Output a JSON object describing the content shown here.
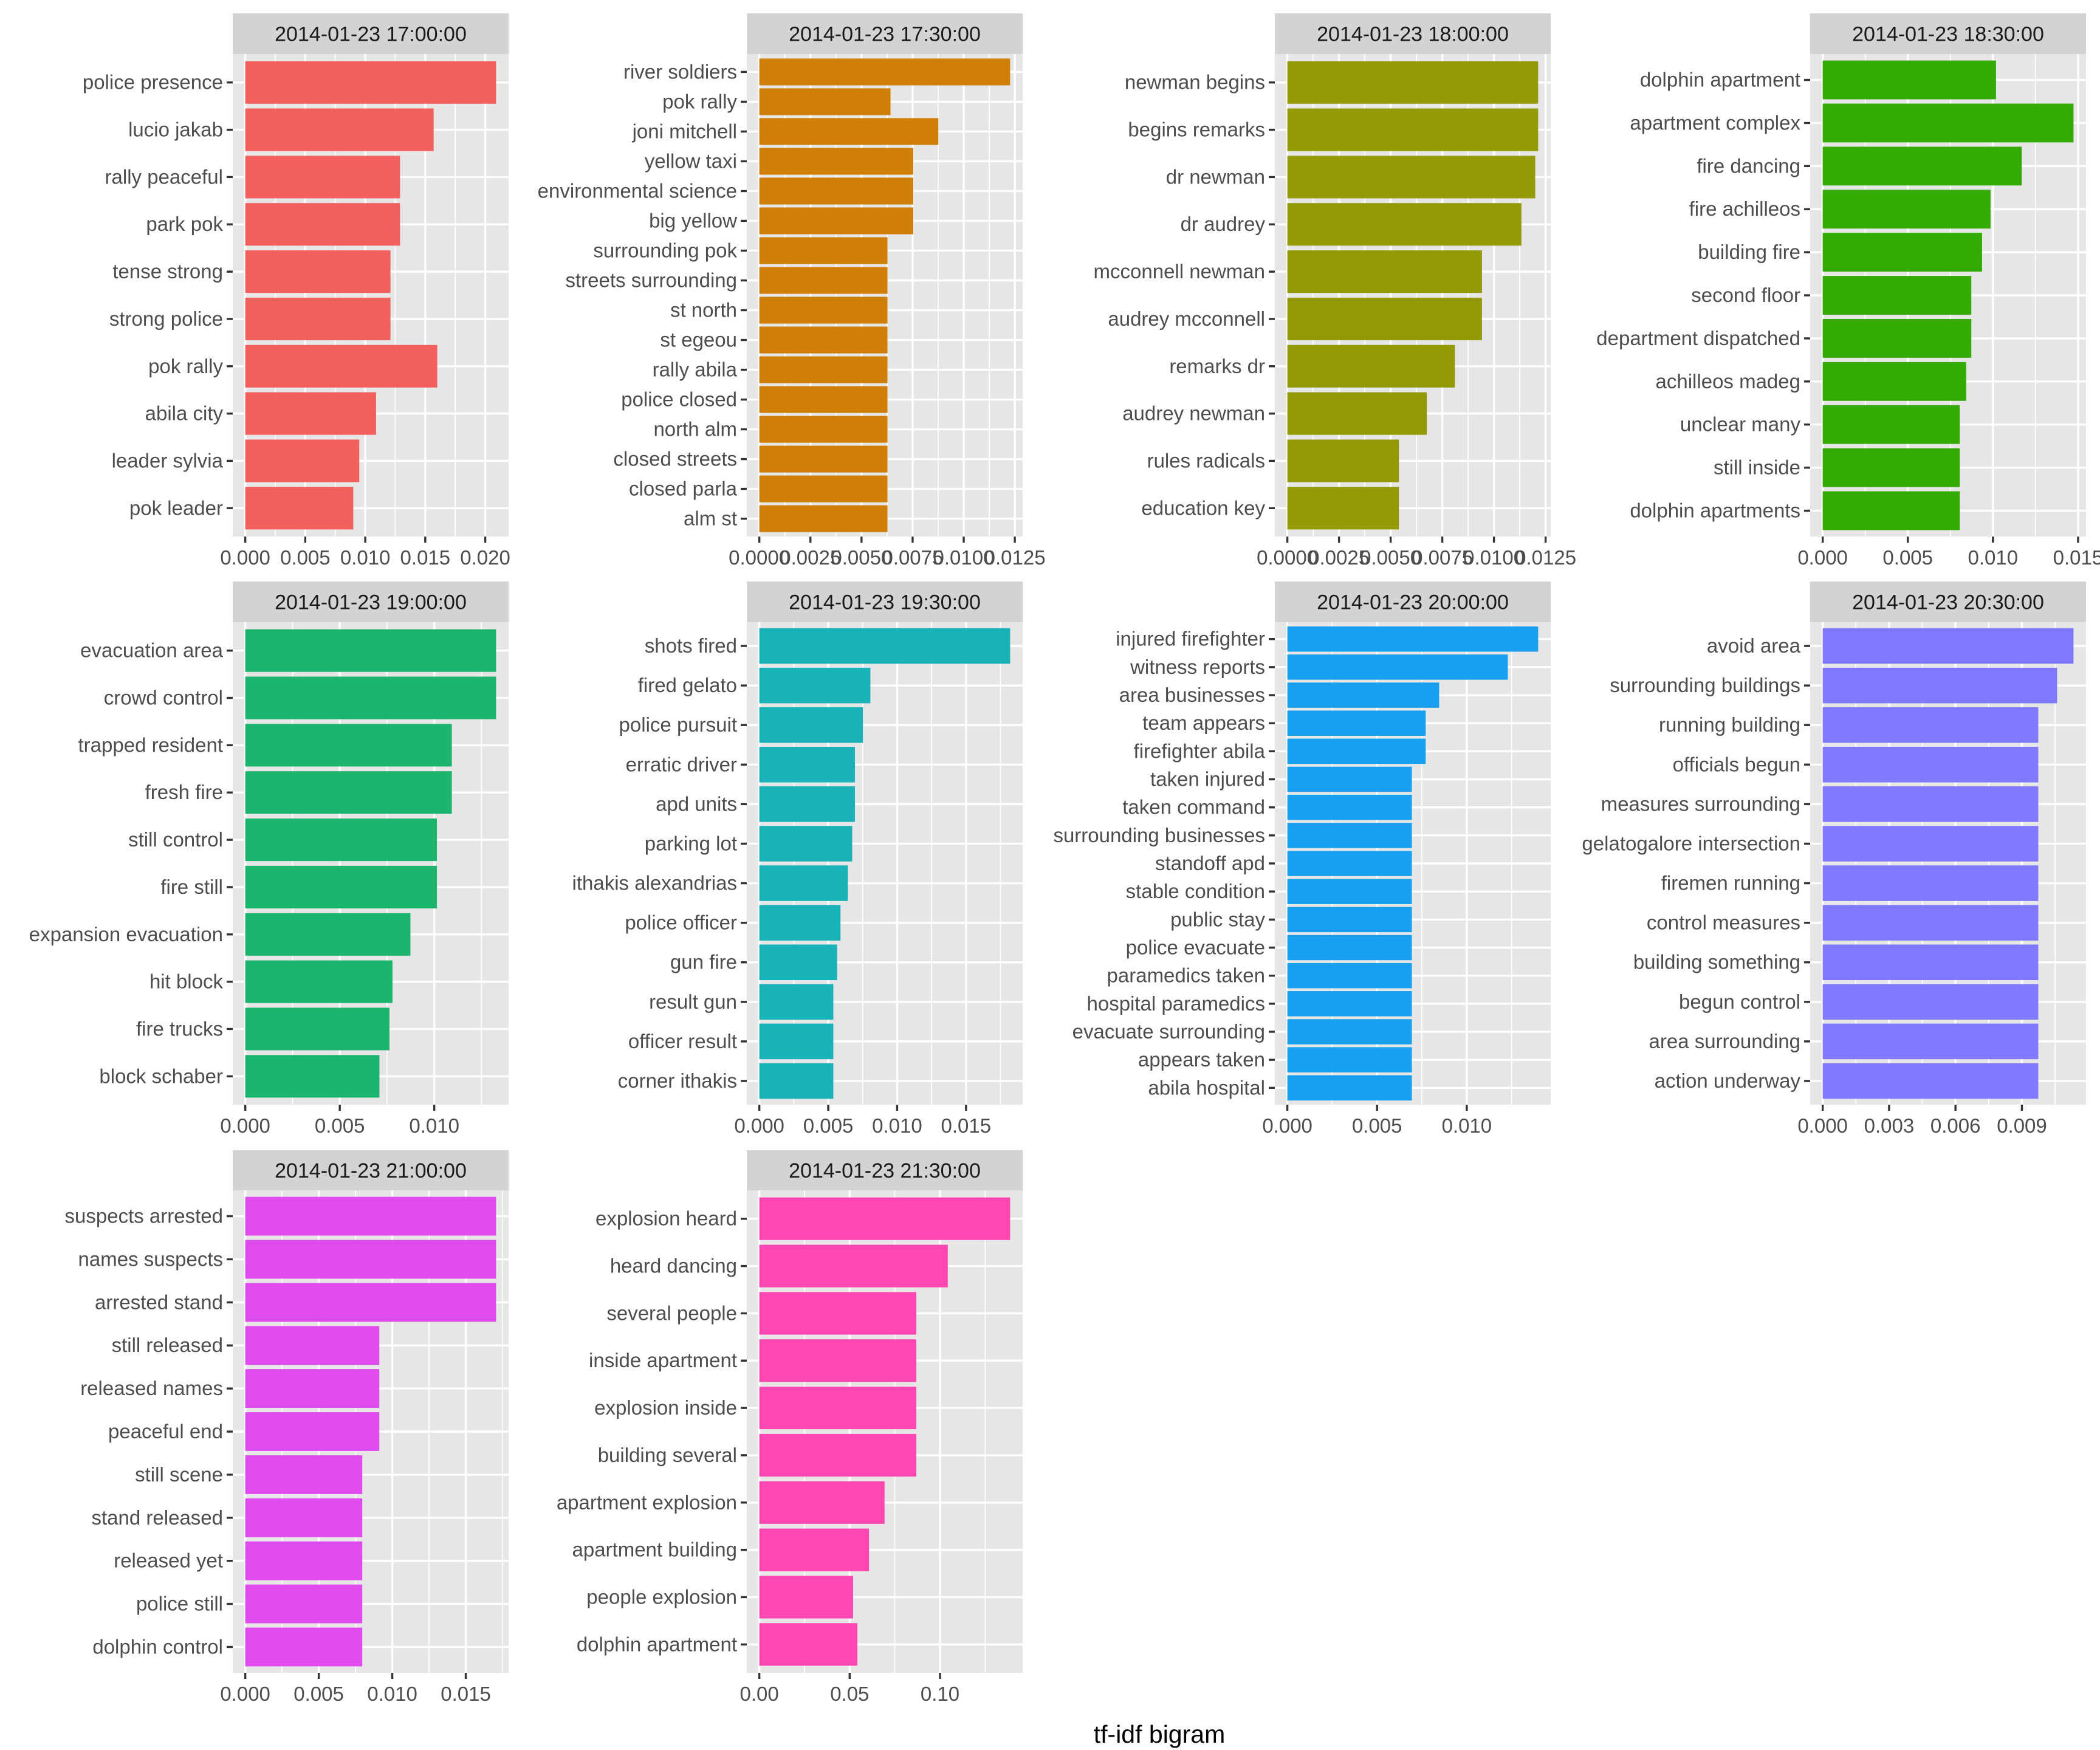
{
  "chart_data": {
    "type": "bar",
    "orientation": "horizontal",
    "layout": "facet_wrap",
    "facet_columns": 4,
    "xlabel": "tf-idf bigram",
    "ylabel": "",
    "grid": true,
    "legend": "none",
    "panels": [
      {
        "title": "2014-01-23 17:00:00",
        "color": "#F25F5C",
        "xlim": [
          0,
          0.0209
        ],
        "ticks": [
          0,
          0.005,
          0.01,
          0.015,
          0.02
        ],
        "tick_labels": [
          "0.000",
          "0.005",
          "0.010",
          "0.015",
          "0.020"
        ],
        "categories": [
          "police presence",
          "lucio jakab",
          "rally peaceful",
          "park pok",
          "tense strong",
          "strong police",
          "pok rally",
          "abila city",
          "leader sylvia",
          "pok leader"
        ],
        "values": [
          0.0209,
          0.0157,
          0.0129,
          0.0129,
          0.0121,
          0.0121,
          0.016,
          0.0109,
          0.0095,
          0.009
        ]
      },
      {
        "title": "2014-01-23 17:30:00",
        "color": "#CF7F07",
        "xlim": [
          0,
          0.01227
        ],
        "ticks": [
          0,
          0.0025,
          0.005,
          0.0075,
          0.01,
          0.0125
        ],
        "tick_labels": [
          "0.0000",
          "0.0025",
          "0.0050",
          "0.0075",
          "0.0100",
          "0.0125"
        ],
        "categories": [
          "river soldiers",
          "pok rally",
          "joni mitchell",
          "yellow taxi",
          "environmental science",
          "big yellow",
          "surrounding pok",
          "streets surrounding",
          "st north",
          "st egeou",
          "rally abila",
          "police closed",
          "north alm",
          "closed streets",
          "closed parla",
          "alm st"
        ],
        "values": [
          0.01227,
          0.00642,
          0.00876,
          0.00753,
          0.00753,
          0.00753,
          0.00627,
          0.00627,
          0.00627,
          0.00627,
          0.00627,
          0.00627,
          0.00627,
          0.00627,
          0.00627,
          0.00627
        ]
      },
      {
        "title": "2014-01-23 18:00:00",
        "color": "#939A06",
        "xlim": [
          0,
          0.01214
        ],
        "ticks": [
          0,
          0.0025,
          0.005,
          0.0075,
          0.01,
          0.0125
        ],
        "tick_labels": [
          "0.0000",
          "0.0025",
          "0.0050",
          "0.0075",
          "0.0100",
          "0.0125"
        ],
        "categories": [
          "newman begins",
          "begins remarks",
          "dr newman",
          "dr audrey",
          "mcconnell newman",
          "audrey mcconnell",
          "remarks dr",
          "audrey newman",
          "rules radicals",
          "education key"
        ],
        "values": [
          0.01214,
          0.01214,
          0.012,
          0.01133,
          0.00942,
          0.00942,
          0.00811,
          0.00675,
          0.0054,
          0.0054
        ]
      },
      {
        "title": "2014-01-23 18:30:00",
        "color": "#34AB05",
        "xlim": [
          0,
          0.01473
        ],
        "ticks": [
          0,
          0.005,
          0.01,
          0.015
        ],
        "tick_labels": [
          "0.000",
          "0.005",
          "0.010",
          "0.015"
        ],
        "categories": [
          "dolphin apartment",
          "apartment complex",
          "fire dancing",
          "fire achilleos",
          "building fire",
          "second floor",
          "department dispatched",
          "achilleos madeg",
          "unclear many",
          "still inside",
          "dolphin apartments"
        ],
        "values": [
          0.01018,
          0.01473,
          0.01169,
          0.00986,
          0.00936,
          0.00873,
          0.00873,
          0.00843,
          0.00805,
          0.00805,
          0.00805
        ]
      },
      {
        "title": "2014-01-23 19:00:00",
        "color": "#1BB56E",
        "xlim": [
          0,
          0.01327
        ],
        "ticks": [
          0,
          0.005,
          0.01
        ],
        "tick_labels": [
          "0.000",
          "0.005",
          "0.010"
        ],
        "categories": [
          "evacuation area",
          "crowd control",
          "trapped resident",
          "fresh fire",
          "still control",
          "fire still",
          "expansion evacuation",
          "hit block",
          "fire trucks",
          "block schaber"
        ],
        "values": [
          0.01327,
          0.01327,
          0.01093,
          0.01093,
          0.01014,
          0.01014,
          0.00874,
          0.00779,
          0.00763,
          0.0071
        ]
      },
      {
        "title": "2014-01-23 19:30:00",
        "color": "#19B2B8",
        "xlim": [
          0,
          0.0182
        ],
        "ticks": [
          0,
          0.005,
          0.01,
          0.015
        ],
        "tick_labels": [
          "0.000",
          "0.005",
          "0.010",
          "0.015"
        ],
        "categories": [
          "shots fired",
          "fired gelato",
          "police pursuit",
          "erratic driver",
          "apd units",
          "parking lot",
          "ithakis alexandrias",
          "police officer",
          "gun fire",
          "result gun",
          "officer result",
          "corner ithakis"
        ],
        "values": [
          0.0182,
          0.00806,
          0.00752,
          0.00694,
          0.00694,
          0.00674,
          0.00642,
          0.00589,
          0.00564,
          0.00537,
          0.00537,
          0.00537
        ]
      },
      {
        "title": "2014-01-23 20:00:00",
        "color": "#16A0EF",
        "xlim": [
          0,
          0.01398
        ],
        "ticks": [
          0,
          0.005,
          0.01
        ],
        "tick_labels": [
          "0.000",
          "0.005",
          "0.010"
        ],
        "categories": [
          "injured firefighter",
          "witness reports",
          "area businesses",
          "team appears",
          "firefighter abila",
          "taken injured",
          "taken command",
          "surrounding businesses",
          "standoff apd",
          "stable condition",
          "public stay",
          "police evacuate",
          "paramedics taken",
          "hospital paramedics",
          "evacuate surrounding",
          "appears taken",
          "abila hospital"
        ],
        "values": [
          0.01398,
          0.01229,
          0.00846,
          0.00771,
          0.00771,
          0.00694,
          0.00694,
          0.00694,
          0.00694,
          0.00694,
          0.00694,
          0.00694,
          0.00694,
          0.00694,
          0.00694,
          0.00694,
          0.00694
        ]
      },
      {
        "title": "2014-01-23 20:30:00",
        "color": "#8078FF",
        "xlim": [
          0,
          0.01133
        ],
        "ticks": [
          0,
          0.003,
          0.006,
          0.009
        ],
        "tick_labels": [
          "0.000",
          "0.003",
          "0.006",
          "0.009"
        ],
        "categories": [
          "avoid area",
          "surrounding buildings",
          "running building",
          "officials begun",
          "measures surrounding",
          "gelatogalore intersection",
          "firemen running",
          "control measures",
          "building something",
          "begun control",
          "area surrounding",
          "action underway"
        ],
        "values": [
          0.01133,
          0.01059,
          0.00974,
          0.00974,
          0.00974,
          0.00974,
          0.00974,
          0.00974,
          0.00974,
          0.00974,
          0.00974,
          0.00974
        ]
      },
      {
        "title": "2014-01-23 21:00:00",
        "color": "#DF4BEF",
        "xlim": [
          0,
          0.01706
        ],
        "ticks": [
          0,
          0.005,
          0.01,
          0.015
        ],
        "tick_labels": [
          "0.000",
          "0.005",
          "0.010",
          "0.015"
        ],
        "categories": [
          "suspects arrested",
          "names suspects",
          "arrested stand",
          "still released",
          "released names",
          "peaceful end",
          "still scene",
          "stand released",
          "released yet",
          "police still",
          "dolphin control"
        ],
        "values": [
          0.01706,
          0.01706,
          0.01706,
          0.00912,
          0.00912,
          0.00912,
          0.00796,
          0.00796,
          0.00796,
          0.00796,
          0.00796
        ]
      },
      {
        "title": "2014-01-23 21:30:00",
        "color": "#FF47B1",
        "xlim": [
          0,
          0.1388
        ],
        "ticks": [
          0,
          0.05,
          0.1
        ],
        "tick_labels": [
          "0.00",
          "0.05",
          "0.10"
        ],
        "categories": [
          "explosion heard",
          "heard dancing",
          "several people",
          "inside apartment",
          "explosion inside",
          "building several",
          "apartment explosion",
          "apartment building",
          "people explosion",
          "dolphin apartment"
        ],
        "values": [
          0.1388,
          0.1043,
          0.0869,
          0.0869,
          0.0869,
          0.0869,
          0.0693,
          0.0607,
          0.0519,
          0.0543
        ]
      }
    ]
  }
}
